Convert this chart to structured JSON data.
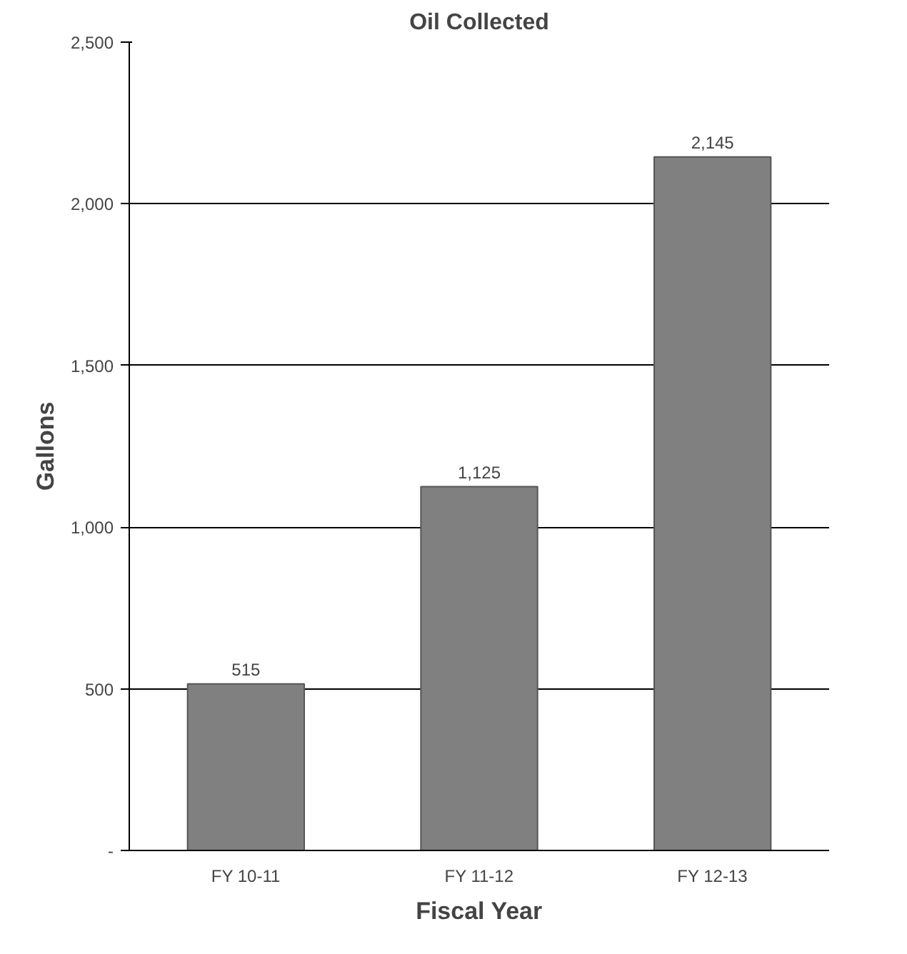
{
  "chart_data": {
    "type": "bar",
    "title": "Oil Collected",
    "xlabel": "Fiscal Year",
    "ylabel": "Gallons",
    "categories": [
      "FY 10-11",
      "FY 11-12",
      "FY 12-13"
    ],
    "values": [
      515,
      1125,
      2145
    ],
    "color": "#808080",
    "value_labels": [
      "515",
      "1,125",
      "2,145"
    ],
    "ylim": [
      0,
      2500
    ],
    "yticks": [
      {
        "value": 0,
        "label": "-"
      },
      {
        "value": 500,
        "label": "500"
      },
      {
        "value": 1000,
        "label": "1,000"
      },
      {
        "value": 1500,
        "label": "1,500"
      },
      {
        "value": 2000,
        "label": "2,000"
      },
      {
        "value": 2500,
        "label": "2,500"
      }
    ],
    "grid": "y"
  }
}
